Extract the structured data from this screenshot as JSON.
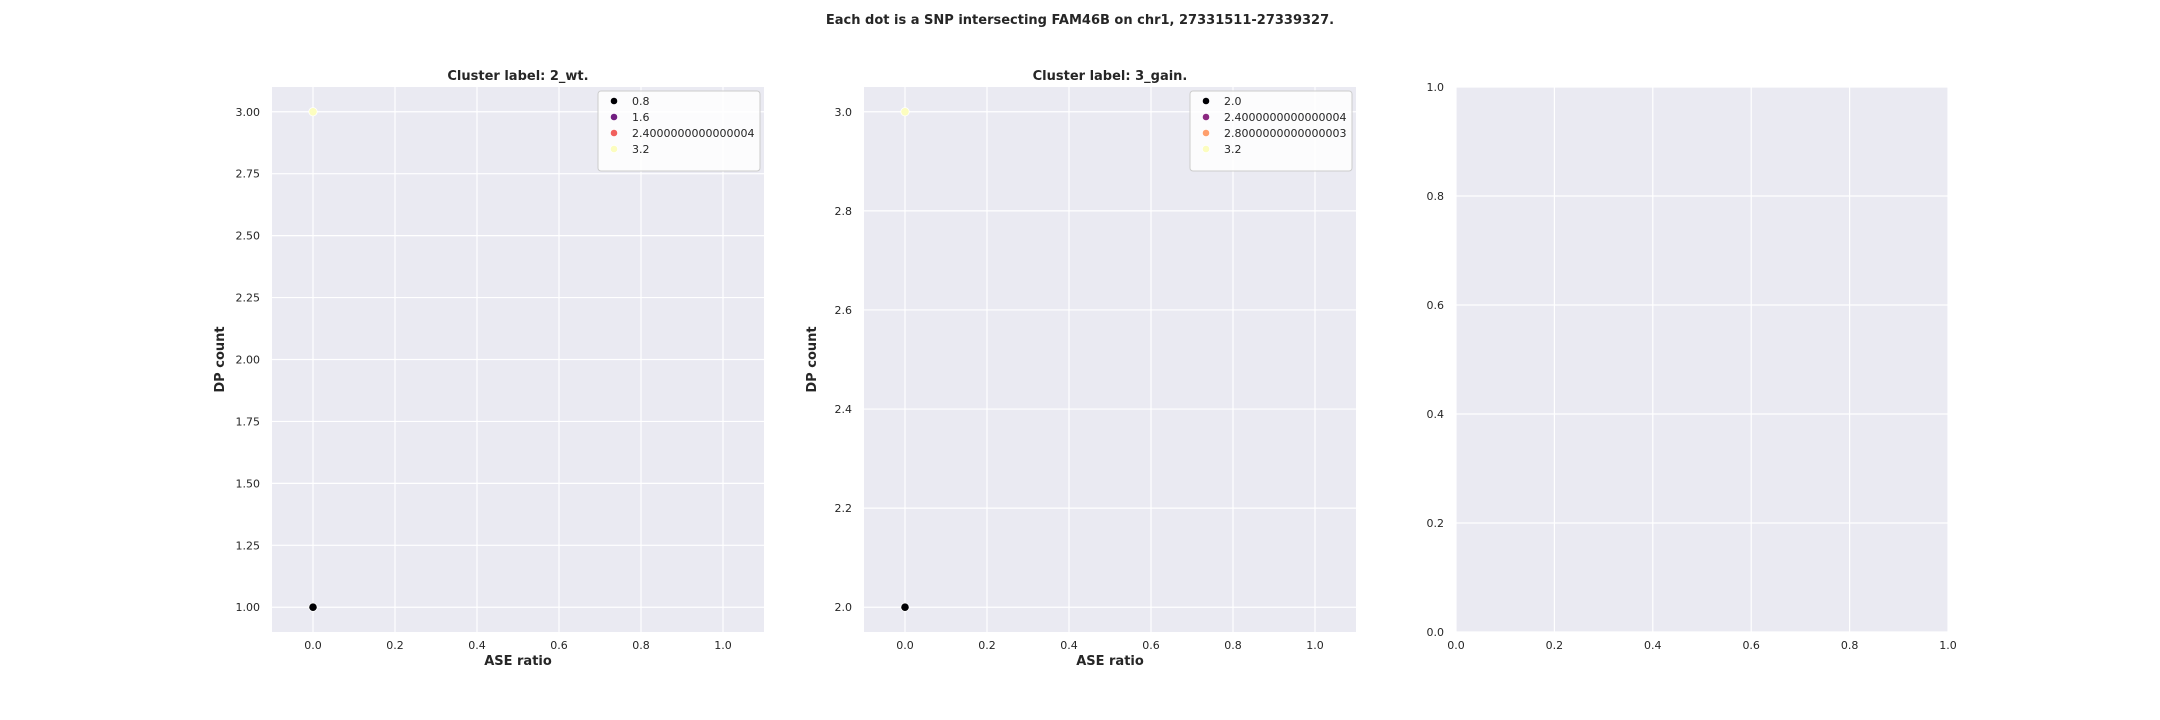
{
  "suptitle": "Each dot is a SNP intersecting FAM46B on chr1, 27331511-27339327.",
  "chart_data": [
    {
      "type": "scatter",
      "title": "Cluster label: 2_wt.",
      "xlabel": "ASE ratio",
      "ylabel": "DP count",
      "xlim": [
        -0.1,
        1.1
      ],
      "ylim": [
        0.9,
        3.1
      ],
      "xticks": [
        "0.0",
        "0.2",
        "0.4",
        "0.6",
        "0.8",
        "1.0"
      ],
      "yticks": [
        "1.00",
        "1.25",
        "1.50",
        "1.75",
        "2.00",
        "2.25",
        "2.50",
        "2.75",
        "3.00"
      ],
      "grid": true,
      "legend_position": "top-right",
      "legend": [
        {
          "label": "0.8",
          "color": "#000004"
        },
        {
          "label": "1.6",
          "color": "#721f81"
        },
        {
          "label": "2.4000000000000004",
          "color": "#f1605d"
        },
        {
          "label": "3.2",
          "color": "#fcfdbf"
        }
      ],
      "points": [
        {
          "x": 0.0,
          "y": 1.0,
          "color": "#000004"
        },
        {
          "x": 0.0,
          "y": 3.0,
          "color": "#fcfdbf"
        }
      ]
    },
    {
      "type": "scatter",
      "title": "Cluster label: 3_gain.",
      "xlabel": "ASE ratio",
      "ylabel": "DP count",
      "xlim": [
        -0.1,
        1.1
      ],
      "ylim": [
        1.95,
        3.05
      ],
      "xticks": [
        "0.0",
        "0.2",
        "0.4",
        "0.6",
        "0.8",
        "1.0"
      ],
      "yticks": [
        "2.0",
        "2.2",
        "2.4",
        "2.6",
        "2.8",
        "3.0"
      ],
      "grid": true,
      "legend_position": "top-right",
      "legend": [
        {
          "label": "2.0",
          "color": "#000004"
        },
        {
          "label": "2.4000000000000004",
          "color": "#8c2981"
        },
        {
          "label": "2.8000000000000003",
          "color": "#fe9f6d"
        },
        {
          "label": "3.2",
          "color": "#fcfdbf"
        }
      ],
      "points": [
        {
          "x": 0.0,
          "y": 2.0,
          "color": "#000004"
        },
        {
          "x": 0.0,
          "y": 3.0,
          "color": "#fcfdbf"
        }
      ]
    },
    {
      "type": "scatter",
      "title": "",
      "xlabel": "",
      "ylabel": "",
      "xlim": [
        0.0,
        1.0
      ],
      "ylim": [
        0.0,
        1.0
      ],
      "xticks": [
        "0.0",
        "0.2",
        "0.4",
        "0.6",
        "0.8",
        "1.0"
      ],
      "yticks": [
        "0.0",
        "0.2",
        "0.4",
        "0.6",
        "0.8",
        "1.0"
      ],
      "grid": true,
      "legend": [],
      "points": []
    }
  ]
}
